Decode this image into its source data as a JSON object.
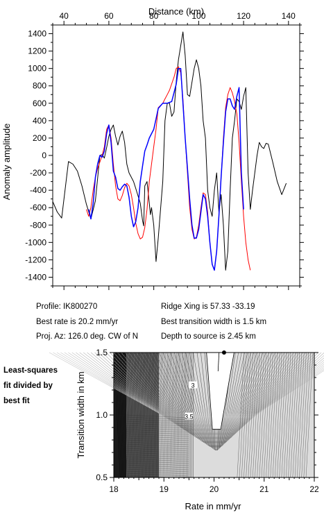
{
  "chart_data": [
    {
      "type": "line",
      "title": "",
      "xlabel": "Distance (km)",
      "ylabel": "Anomaly amplitude",
      "xlim": [
        35,
        145
      ],
      "ylim": [
        -1500,
        1500
      ],
      "x_ticks": [
        40,
        60,
        80,
        100,
        120,
        140
      ],
      "y_ticks": [
        -1400,
        -1200,
        -1000,
        -800,
        -600,
        -400,
        -200,
        0,
        200,
        400,
        600,
        800,
        1000,
        1200,
        1400
      ],
      "x_axis_position": "top",
      "grid": false,
      "series": [
        {
          "color": "#000000",
          "points": [
            [
              35,
              -530
            ],
            [
              37,
              -650
            ],
            [
              39,
              -720
            ],
            [
              42,
              -70
            ],
            [
              44,
              -100
            ],
            [
              46,
              -180
            ],
            [
              48,
              -350
            ],
            [
              50,
              -560
            ],
            [
              52,
              -730
            ],
            [
              54,
              -520
            ],
            [
              56,
              0
            ],
            [
              57,
              10
            ],
            [
              58,
              -30
            ],
            [
              59,
              90
            ],
            [
              60,
              220
            ],
            [
              61,
              300
            ],
            [
              62,
              350
            ],
            [
              63,
              220
            ],
            [
              64,
              120
            ],
            [
              65,
              220
            ],
            [
              66,
              280
            ],
            [
              67,
              150
            ],
            [
              68,
              -100
            ],
            [
              69,
              -200
            ],
            [
              71,
              -300
            ],
            [
              72,
              -380
            ],
            [
              74,
              -550
            ],
            [
              75,
              -750
            ],
            [
              75.5,
              -810
            ],
            [
              76,
              -350
            ],
            [
              77,
              -300
            ],
            [
              78,
              -550
            ],
            [
              78.5,
              -680
            ],
            [
              79,
              -600
            ],
            [
              80,
              -800
            ],
            [
              81,
              -1220
            ],
            [
              82,
              -950
            ],
            [
              84,
              -300
            ],
            [
              85,
              400
            ],
            [
              86,
              600
            ],
            [
              87,
              600
            ],
            [
              88,
              450
            ],
            [
              89,
              500
            ],
            [
              90,
              850
            ],
            [
              91,
              1100
            ],
            [
              93,
              1420
            ],
            [
              94,
              1150
            ],
            [
              95,
              700
            ],
            [
              96,
              680
            ],
            [
              98,
              1000
            ],
            [
              99,
              1100
            ],
            [
              100,
              1000
            ],
            [
              101,
              800
            ],
            [
              102,
              400
            ],
            [
              103,
              200
            ],
            [
              104,
              -400
            ],
            [
              105,
              -600
            ],
            [
              106,
              -700
            ],
            [
              107,
              -400
            ],
            [
              108,
              -200
            ],
            [
              109,
              -650
            ],
            [
              110,
              -450
            ],
            [
              111,
              -800
            ],
            [
              112,
              -1320
            ],
            [
              113,
              -1100
            ],
            [
              114,
              -400
            ],
            [
              115,
              200
            ],
            [
              116,
              400
            ],
            [
              117,
              650
            ],
            [
              118,
              620
            ],
            [
              119,
              530
            ],
            [
              120,
              680
            ],
            [
              121,
              780
            ],
            [
              122,
              -200
            ],
            [
              123,
              -620
            ],
            [
              124,
              -400
            ],
            [
              126,
              0
            ],
            [
              127,
              150
            ],
            [
              128,
              100
            ],
            [
              129,
              80
            ],
            [
              130,
              140
            ],
            [
              131,
              130
            ],
            [
              133,
              -80
            ],
            [
              135,
              -300
            ],
            [
              137,
              -450
            ],
            [
              139,
              -320
            ]
          ]
        },
        {
          "color": "#ff0000",
          "points": [
            [
              50,
              -620
            ],
            [
              51,
              -700
            ],
            [
              52,
              -600
            ],
            [
              53,
              -400
            ],
            [
              54,
              -250
            ],
            [
              55,
              -150
            ],
            [
              57,
              0
            ],
            [
              58,
              100
            ],
            [
              59,
              300
            ],
            [
              60,
              350
            ],
            [
              61,
              200
            ],
            [
              62,
              -100
            ],
            [
              63,
              -350
            ],
            [
              64,
              -500
            ],
            [
              65,
              -520
            ],
            [
              66,
              -460
            ],
            [
              67,
              -370
            ],
            [
              68,
              -320
            ],
            [
              69,
              -350
            ],
            [
              70,
              -450
            ],
            [
              71,
              -600
            ],
            [
              72,
              -780
            ],
            [
              73,
              -900
            ],
            [
              74,
              -960
            ],
            [
              75,
              -940
            ],
            [
              76,
              -830
            ],
            [
              77,
              -620
            ],
            [
              78,
              -300
            ],
            [
              80,
              100
            ],
            [
              81,
              300
            ],
            [
              82,
              550
            ],
            [
              84,
              600
            ],
            [
              85,
              650
            ],
            [
              86,
              700
            ],
            [
              87,
              750
            ],
            [
              89,
              900
            ],
            [
              90,
              1000
            ],
            [
              91,
              1020
            ],
            [
              92,
              950
            ],
            [
              93,
              650
            ],
            [
              94,
              200
            ],
            [
              95,
              -200
            ],
            [
              96,
              -600
            ],
            [
              97,
              -850
            ],
            [
              98,
              -960
            ],
            [
              99,
              -940
            ],
            [
              100,
              -800
            ],
            [
              101,
              -600
            ],
            [
              102,
              -430
            ],
            [
              103,
              -450
            ],
            [
              104,
              -650
            ],
            [
              105,
              -1000
            ],
            [
              106,
              -1250
            ],
            [
              107,
              -1320
            ],
            [
              108,
              -1100
            ],
            [
              109,
              -700
            ],
            [
              110,
              -250
            ],
            [
              111,
              200
            ],
            [
              112,
              550
            ],
            [
              113,
              700
            ],
            [
              114,
              780
            ],
            [
              115,
              720
            ],
            [
              116,
              620
            ],
            [
              117,
              480
            ],
            [
              118,
              150
            ],
            [
              119,
              -300
            ],
            [
              120,
              -700
            ],
            [
              121,
              -1000
            ],
            [
              122,
              -1200
            ],
            [
              123,
              -1320
            ]
          ]
        },
        {
          "color": "#0000ff",
          "points": [
            [
              51,
              -620
            ],
            [
              52,
              -730
            ],
            [
              53,
              -550
            ],
            [
              54,
              -250
            ],
            [
              55,
              -100
            ],
            [
              56,
              0
            ],
            [
              57,
              -20
            ],
            [
              58,
              50
            ],
            [
              59,
              250
            ],
            [
              60,
              350
            ],
            [
              61,
              150
            ],
            [
              62,
              -180
            ],
            [
              63,
              -250
            ],
            [
              64,
              -380
            ],
            [
              65,
              -400
            ],
            [
              66,
              -360
            ],
            [
              67,
              -330
            ],
            [
              68,
              -350
            ],
            [
              69,
              -480
            ],
            [
              70,
              -700
            ],
            [
              71,
              -820
            ],
            [
              72,
              -760
            ],
            [
              73,
              -600
            ],
            [
              74,
              -300
            ],
            [
              75,
              -120
            ],
            [
              76,
              50
            ],
            [
              77,
              120
            ],
            [
              78,
              200
            ],
            [
              80,
              300
            ],
            [
              81,
              420
            ],
            [
              82,
              540
            ],
            [
              84,
              600
            ],
            [
              86,
              600
            ],
            [
              88,
              620
            ],
            [
              90,
              820
            ],
            [
              91,
              1000
            ],
            [
              92,
              1000
            ],
            [
              93,
              600
            ],
            [
              94,
              200
            ],
            [
              95,
              -150
            ],
            [
              96,
              -500
            ],
            [
              97,
              -800
            ],
            [
              98,
              -950
            ],
            [
              99,
              -950
            ],
            [
              100,
              -850
            ],
            [
              101,
              -650
            ],
            [
              102,
              -450
            ],
            [
              103,
              -500
            ],
            [
              104,
              -700
            ],
            [
              105,
              -1000
            ],
            [
              106,
              -1250
            ],
            [
              107,
              -1320
            ],
            [
              108,
              -1100
            ],
            [
              109,
              -700
            ],
            [
              110,
              -250
            ],
            [
              111,
              150
            ],
            [
              112,
              500
            ],
            [
              113,
              650
            ],
            [
              114,
              650
            ],
            [
              115,
              570
            ],
            [
              116,
              530
            ],
            [
              117,
              680
            ],
            [
              118,
              780
            ],
            [
              119,
              -200
            ],
            [
              120,
              -620
            ]
          ]
        }
      ]
    },
    {
      "type": "heatmap",
      "title": "",
      "xlabel": "Rate in mm/yr",
      "ylabel": "Transition width in km",
      "xlim": [
        18,
        22
      ],
      "ylim": [
        0.5,
        1.5
      ],
      "x_ticks": [
        18,
        19,
        20,
        21,
        22
      ],
      "y_ticks": [
        0.5,
        1.0,
        1.5
      ],
      "contour_labels": [
        {
          "text": "3",
          "x": 19.58,
          "y": 1.23
        },
        {
          "text": "3.5",
          "x": 19.5,
          "y": 0.98
        }
      ],
      "best_fit_marker": {
        "x": 20.2,
        "y": 1.5
      }
    }
  ],
  "info": {
    "profile": "Profile: IK800270",
    "ridge": "Ridge Xing is 57.33 -33.19",
    "rate": "Best rate is 20.2 mm/yr",
    "width": "Best transition width is 1.5 km",
    "proj": "Proj. Az: 126.0 deg. CW of N",
    "depth": "Depth to source is   2.45 km"
  },
  "side_label": [
    "Least-squares",
    "fit divided by",
    "best fit"
  ]
}
